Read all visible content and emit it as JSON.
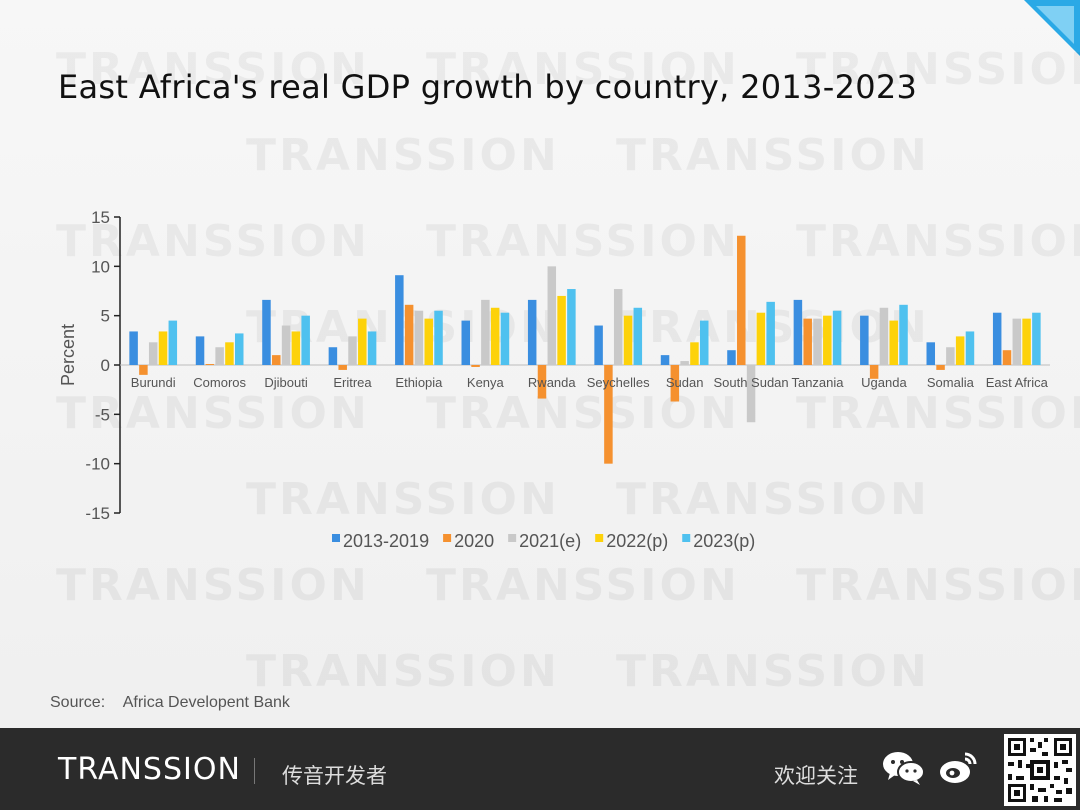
{
  "header": {
    "title": "East Africa's real GDP growth by country, 2013-2023"
  },
  "source": {
    "label": "Source:",
    "text": "Africa Developent Bank"
  },
  "footer": {
    "logo": "TRANSSION",
    "channel": "传音开发者",
    "follow": "欢迎关注"
  },
  "watermark": {
    "text": "TRANSSION"
  },
  "colors": {
    "accent": "#2aa9e6",
    "footer_bg": "#2b2b2b"
  },
  "chart_data": {
    "type": "bar",
    "title": "",
    "xlabel": "",
    "ylabel": "Percent",
    "ylim": [
      -15,
      15
    ],
    "yticks": [
      15,
      10,
      5,
      0,
      -5,
      -10,
      -15
    ],
    "legend_position": "bottom",
    "grid": false,
    "categories": [
      "Burundi",
      "Comoros",
      "Djibouti",
      "Eritrea",
      "Ethiopia",
      "Kenya",
      "Rwanda",
      "Seychelles",
      "Sudan",
      "South Sudan",
      "Tanzania",
      "Uganda",
      "Somalia",
      "East Africa"
    ],
    "series": [
      {
        "name": "2013-2019",
        "color": "#3a8ee0",
        "values": [
          3.4,
          2.9,
          6.6,
          1.8,
          9.1,
          4.5,
          6.6,
          4.0,
          1.0,
          1.5,
          6.6,
          5.0,
          2.3,
          5.3
        ]
      },
      {
        "name": "2020",
        "color": "#f5912f",
        "values": [
          -1.0,
          0.1,
          1.0,
          -0.5,
          6.1,
          -0.2,
          -3.4,
          -10.0,
          -3.7,
          13.1,
          4.7,
          -1.4,
          -0.5,
          1.5
        ]
      },
      {
        "name": "2021(e)",
        "color": "#c9c9c9",
        "values": [
          2.3,
          1.8,
          4.0,
          2.9,
          5.5,
          6.6,
          10.0,
          7.7,
          0.4,
          -5.8,
          4.7,
          5.8,
          1.8,
          4.7
        ]
      },
      {
        "name": "2022(p)",
        "color": "#fdd20a",
        "values": [
          3.4,
          2.3,
          3.4,
          4.7,
          4.7,
          5.8,
          7.0,
          5.0,
          2.3,
          5.3,
          5.0,
          4.5,
          2.9,
          4.7
        ]
      },
      {
        "name": "2023(p)",
        "color": "#4fc1ef",
        "values": [
          4.5,
          3.2,
          5.0,
          3.4,
          5.5,
          5.3,
          7.7,
          5.8,
          4.5,
          6.4,
          5.5,
          6.1,
          3.4,
          5.3
        ]
      }
    ]
  }
}
